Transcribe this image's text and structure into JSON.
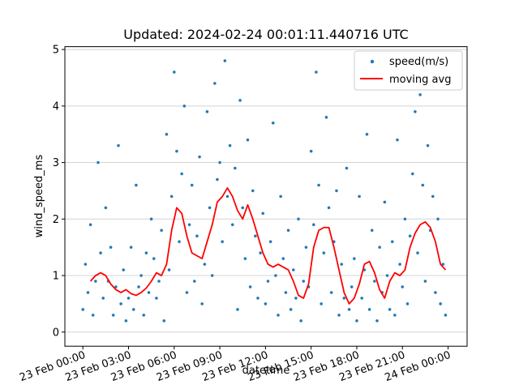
{
  "chart_data": {
    "type": "scatter",
    "title": "Updated: 2024-02-24 00:01:11.440716 UTC",
    "xlabel": "datetime",
    "ylabel": "wind_speed_ms",
    "x_range": [
      "2024-02-22T22:49",
      "2024-02-24T01:15"
    ],
    "ylim": [
      -0.25,
      5.05
    ],
    "x_ticks": [
      {
        "t": "2024-02-23T00:00",
        "label": "23 Feb 00:00"
      },
      {
        "t": "2024-02-23T03:00",
        "label": "23 Feb 03:00"
      },
      {
        "t": "2024-02-23T06:00",
        "label": "23 Feb 06:00"
      },
      {
        "t": "2024-02-23T09:00",
        "label": "23 Feb 09:00"
      },
      {
        "t": "2024-02-23T12:00",
        "label": "23 Feb 12:00"
      },
      {
        "t": "2024-02-23T15:00",
        "label": "23 Feb 15:00"
      },
      {
        "t": "2024-02-23T18:00",
        "label": "23 Feb 18:00"
      },
      {
        "t": "2024-02-23T21:00",
        "label": "23 Feb 21:00"
      },
      {
        "t": "2024-02-24T00:00",
        "label": "24 Feb 00:00"
      }
    ],
    "y_ticks": [
      0,
      1,
      2,
      3,
      4,
      5
    ],
    "grid": "horizontal",
    "legend": "top-right",
    "series": [
      {
        "name": "speed(m/s)",
        "kind": "scatter",
        "color": "#1f77b4",
        "x": [
          "2024-02-23T00:00",
          "2024-02-23T00:10",
          "2024-02-23T00:20",
          "2024-02-23T00:30",
          "2024-02-23T00:40",
          "2024-02-23T00:50",
          "2024-02-23T01:00",
          "2024-02-23T01:10",
          "2024-02-23T01:20",
          "2024-02-23T01:30",
          "2024-02-23T01:40",
          "2024-02-23T01:50",
          "2024-02-23T02:00",
          "2024-02-23T02:10",
          "2024-02-23T02:20",
          "2024-02-23T02:30",
          "2024-02-23T02:40",
          "2024-02-23T02:50",
          "2024-02-23T03:00",
          "2024-02-23T03:10",
          "2024-02-23T03:20",
          "2024-02-23T03:30",
          "2024-02-23T03:40",
          "2024-02-23T03:50",
          "2024-02-23T04:00",
          "2024-02-23T04:10",
          "2024-02-23T04:20",
          "2024-02-23T04:30",
          "2024-02-23T04:40",
          "2024-02-23T04:50",
          "2024-02-23T05:00",
          "2024-02-23T05:10",
          "2024-02-23T05:20",
          "2024-02-23T05:30",
          "2024-02-23T05:40",
          "2024-02-23T05:50",
          "2024-02-23T06:00",
          "2024-02-23T06:10",
          "2024-02-23T06:20",
          "2024-02-23T06:30",
          "2024-02-23T06:40",
          "2024-02-23T06:50",
          "2024-02-23T07:00",
          "2024-02-23T07:10",
          "2024-02-23T07:20",
          "2024-02-23T07:30",
          "2024-02-23T07:40",
          "2024-02-23T07:50",
          "2024-02-23T08:00",
          "2024-02-23T08:10",
          "2024-02-23T08:20",
          "2024-02-23T08:30",
          "2024-02-23T08:40",
          "2024-02-23T08:50",
          "2024-02-23T09:00",
          "2024-02-23T09:10",
          "2024-02-23T09:20",
          "2024-02-23T09:30",
          "2024-02-23T09:40",
          "2024-02-23T09:50",
          "2024-02-23T10:00",
          "2024-02-23T10:10",
          "2024-02-23T10:20",
          "2024-02-23T10:30",
          "2024-02-23T10:40",
          "2024-02-23T10:50",
          "2024-02-23T11:00",
          "2024-02-23T11:10",
          "2024-02-23T11:20",
          "2024-02-23T11:30",
          "2024-02-23T11:40",
          "2024-02-23T11:50",
          "2024-02-23T12:00",
          "2024-02-23T12:10",
          "2024-02-23T12:20",
          "2024-02-23T12:30",
          "2024-02-23T12:40",
          "2024-02-23T12:50",
          "2024-02-23T13:00",
          "2024-02-23T13:10",
          "2024-02-23T13:20",
          "2024-02-23T13:30",
          "2024-02-23T13:40",
          "2024-02-23T13:50",
          "2024-02-23T14:00",
          "2024-02-23T14:10",
          "2024-02-23T14:20",
          "2024-02-23T14:30",
          "2024-02-23T14:40",
          "2024-02-23T14:50",
          "2024-02-23T15:00",
          "2024-02-23T15:10",
          "2024-02-23T15:20",
          "2024-02-23T15:30",
          "2024-02-23T15:40",
          "2024-02-23T15:50",
          "2024-02-23T16:00",
          "2024-02-23T16:10",
          "2024-02-23T16:20",
          "2024-02-23T16:30",
          "2024-02-23T16:40",
          "2024-02-23T16:50",
          "2024-02-23T17:00",
          "2024-02-23T17:10",
          "2024-02-23T17:20",
          "2024-02-23T17:30",
          "2024-02-23T17:40",
          "2024-02-23T17:50",
          "2024-02-23T18:00",
          "2024-02-23T18:10",
          "2024-02-23T18:20",
          "2024-02-23T18:30",
          "2024-02-23T18:40",
          "2024-02-23T18:50",
          "2024-02-23T19:00",
          "2024-02-23T19:10",
          "2024-02-23T19:20",
          "2024-02-23T19:30",
          "2024-02-23T19:40",
          "2024-02-23T19:50",
          "2024-02-23T20:00",
          "2024-02-23T20:10",
          "2024-02-23T20:20",
          "2024-02-23T20:30",
          "2024-02-23T20:40",
          "2024-02-23T20:50",
          "2024-02-23T21:00",
          "2024-02-23T21:10",
          "2024-02-23T21:20",
          "2024-02-23T21:30",
          "2024-02-23T21:40",
          "2024-02-23T21:50",
          "2024-02-23T22:00",
          "2024-02-23T22:10",
          "2024-02-23T22:20",
          "2024-02-23T22:30",
          "2024-02-23T22:40",
          "2024-02-23T22:50",
          "2024-02-23T23:00",
          "2024-02-23T23:10",
          "2024-02-23T23:20",
          "2024-02-23T23:30",
          "2024-02-23T23:40",
          "2024-02-23T23:50"
        ],
        "y": [
          0.4,
          1.2,
          0.7,
          1.9,
          0.3,
          0.9,
          3.0,
          1.4,
          0.6,
          2.2,
          0.9,
          1.5,
          0.3,
          0.8,
          3.3,
          0.5,
          1.1,
          0.2,
          0.6,
          1.5,
          0.4,
          2.6,
          0.8,
          1.0,
          0.3,
          1.4,
          0.7,
          2.0,
          1.3,
          0.6,
          0.9,
          1.8,
          0.2,
          3.5,
          1.1,
          2.4,
          4.6,
          3.2,
          1.6,
          2.8,
          4.0,
          0.7,
          1.9,
          2.6,
          0.9,
          1.7,
          3.1,
          0.5,
          1.2,
          3.9,
          2.2,
          1.0,
          4.4,
          2.7,
          3.0,
          1.6,
          4.8,
          2.4,
          3.3,
          1.9,
          2.9,
          0.4,
          4.1,
          2.2,
          1.3,
          3.4,
          0.8,
          2.5,
          1.7,
          0.6,
          1.4,
          2.1,
          0.5,
          0.9,
          1.6,
          3.7,
          1.0,
          0.3,
          2.4,
          1.3,
          0.7,
          1.8,
          0.4,
          1.1,
          0.6,
          2.0,
          0.2,
          0.9,
          1.5,
          0.8,
          3.2,
          1.9,
          4.6,
          2.6,
          0.5,
          1.4,
          3.8,
          2.2,
          0.7,
          1.6,
          2.5,
          0.3,
          1.2,
          0.6,
          2.9,
          0.4,
          0.8,
          1.3,
          0.2,
          2.4,
          0.6,
          1.1,
          3.5,
          0.4,
          1.8,
          0.9,
          0.2,
          1.5,
          0.7,
          2.3,
          1.0,
          0.4,
          1.6,
          0.3,
          3.4,
          1.2,
          0.8,
          2.0,
          0.5,
          1.7,
          2.8,
          3.9,
          1.4,
          4.2,
          2.6,
          0.9,
          3.3,
          1.8,
          2.4,
          0.7,
          2.0,
          0.5,
          1.2,
          0.3
        ]
      },
      {
        "name": "moving avg",
        "kind": "line",
        "color": "#ff0000",
        "x": [
          "2024-02-23T00:30",
          "2024-02-23T00:50",
          "2024-02-23T01:10",
          "2024-02-23T01:30",
          "2024-02-23T01:50",
          "2024-02-23T02:10",
          "2024-02-23T02:30",
          "2024-02-23T02:50",
          "2024-02-23T03:10",
          "2024-02-23T03:30",
          "2024-02-23T03:50",
          "2024-02-23T04:10",
          "2024-02-23T04:30",
          "2024-02-23T04:50",
          "2024-02-23T05:10",
          "2024-02-23T05:30",
          "2024-02-23T05:50",
          "2024-02-23T06:10",
          "2024-02-23T06:30",
          "2024-02-23T06:50",
          "2024-02-23T07:10",
          "2024-02-23T07:30",
          "2024-02-23T07:50",
          "2024-02-23T08:10",
          "2024-02-23T08:30",
          "2024-02-23T08:50",
          "2024-02-23T09:10",
          "2024-02-23T09:30",
          "2024-02-23T09:50",
          "2024-02-23T10:10",
          "2024-02-23T10:30",
          "2024-02-23T10:50",
          "2024-02-23T11:10",
          "2024-02-23T11:30",
          "2024-02-23T11:50",
          "2024-02-23T12:10",
          "2024-02-23T12:30",
          "2024-02-23T12:50",
          "2024-02-23T13:10",
          "2024-02-23T13:30",
          "2024-02-23T13:50",
          "2024-02-23T14:10",
          "2024-02-23T14:30",
          "2024-02-23T14:50",
          "2024-02-23T15:10",
          "2024-02-23T15:30",
          "2024-02-23T15:50",
          "2024-02-23T16:10",
          "2024-02-23T16:30",
          "2024-02-23T16:50",
          "2024-02-23T17:10",
          "2024-02-23T17:30",
          "2024-02-23T17:50",
          "2024-02-23T18:10",
          "2024-02-23T18:30",
          "2024-02-23T18:50",
          "2024-02-23T19:10",
          "2024-02-23T19:30",
          "2024-02-23T19:50",
          "2024-02-23T20:10",
          "2024-02-23T20:30",
          "2024-02-23T20:50",
          "2024-02-23T21:10",
          "2024-02-23T21:30",
          "2024-02-23T21:50",
          "2024-02-23T22:10",
          "2024-02-23T22:30",
          "2024-02-23T22:50",
          "2024-02-23T23:10",
          "2024-02-23T23:30",
          "2024-02-23T23:50"
        ],
        "y": [
          0.9,
          1.0,
          1.05,
          1.0,
          0.85,
          0.75,
          0.7,
          0.75,
          0.68,
          0.65,
          0.7,
          0.78,
          0.9,
          1.05,
          1.0,
          1.2,
          1.8,
          2.2,
          2.1,
          1.7,
          1.4,
          1.35,
          1.3,
          1.6,
          1.9,
          2.3,
          2.4,
          2.55,
          2.4,
          2.15,
          2.0,
          2.25,
          2.0,
          1.7,
          1.4,
          1.2,
          1.15,
          1.2,
          1.15,
          1.1,
          0.9,
          0.65,
          0.6,
          0.85,
          1.5,
          1.8,
          1.85,
          1.85,
          1.5,
          1.1,
          0.7,
          0.5,
          0.6,
          0.85,
          1.2,
          1.25,
          1.05,
          0.75,
          0.6,
          0.9,
          1.05,
          1.0,
          1.1,
          1.5,
          1.75,
          1.9,
          1.95,
          1.85,
          1.6,
          1.2,
          1.1
        ]
      }
    ]
  }
}
